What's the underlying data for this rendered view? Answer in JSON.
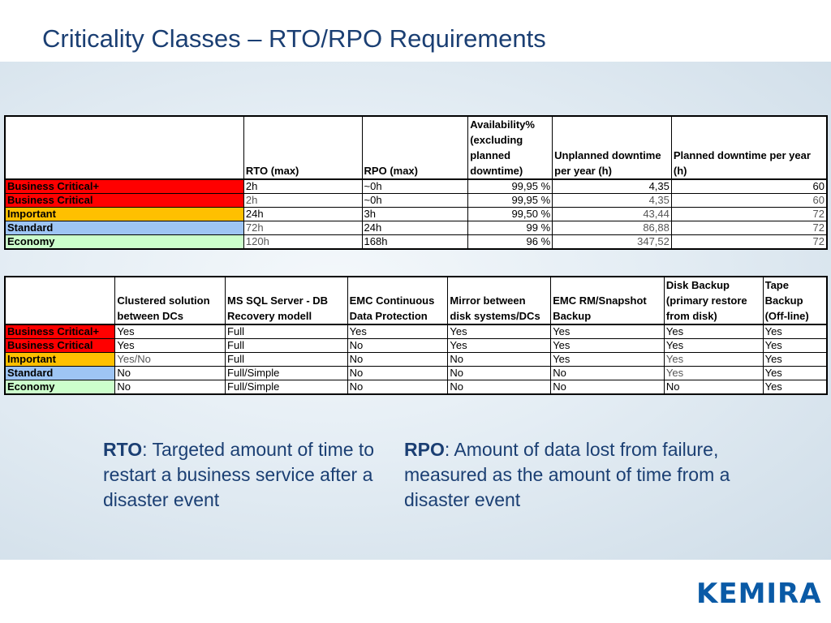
{
  "title": "Criticality Classes – RTO/RPO Requirements",
  "table1": {
    "headers": [
      "",
      "RTO (max)",
      "RPO (max)",
      "Availability% (excluding planned downtime)",
      "Unplanned downtime per year (h)",
      "Planned downtime per year (h)"
    ],
    "rows": [
      {
        "class": "Business Critical+",
        "rto": "2h",
        "rpo": "~0h",
        "availability": "99,95 %",
        "unplanned": "4,35",
        "planned": "60"
      },
      {
        "class": "Business Critical",
        "rto": "2h",
        "rpo": "~0h",
        "availability": "99,95 %",
        "unplanned": "4,35",
        "planned": "60"
      },
      {
        "class": "Important",
        "rto": "24h",
        "rpo": "3h",
        "availability": "99,50 %",
        "unplanned": "43,44",
        "planned": "72"
      },
      {
        "class": "Standard",
        "rto": "72h",
        "rpo": "24h",
        "availability": "99 %",
        "unplanned": "86,88",
        "planned": "72"
      },
      {
        "class": "Economy",
        "rto": "120h",
        "rpo": "168h",
        "availability": "96 %",
        "unplanned": "347,52",
        "planned": "72"
      }
    ]
  },
  "table2": {
    "headers": [
      "",
      "Clustered solution between DCs",
      "MS SQL Server - DB Recovery modell",
      "EMC Continuous Data Protection",
      "Mirror between disk systems/DCs",
      "EMC RM/Snapshot Backup",
      "Disk Backup (primary restore from disk)",
      "Tape Backup (Off-line)"
    ],
    "rows": [
      {
        "class": "Business Critical+",
        "cells": [
          "Yes",
          "Full",
          "Yes",
          "Yes",
          "Yes",
          "Yes",
          "Yes"
        ]
      },
      {
        "class": "Business Critical",
        "cells": [
          "Yes",
          "Full",
          "No",
          "Yes",
          "Yes",
          "Yes",
          "Yes"
        ]
      },
      {
        "class": "Important",
        "cells": [
          "Yes/No",
          "Full",
          "No",
          "No",
          "Yes",
          "Yes",
          "Yes"
        ]
      },
      {
        "class": "Standard",
        "cells": [
          "No",
          "Full/Simple",
          "No",
          "No",
          "No",
          "Yes",
          "Yes"
        ]
      },
      {
        "class": "Economy",
        "cells": [
          "No",
          "Full/Simple",
          "No",
          "No",
          "No",
          "No",
          "Yes"
        ]
      }
    ]
  },
  "definitions": {
    "rto_term": "RTO",
    "rto_text": ": Targeted amount of time to restart a business service after a disaster event",
    "rpo_term": "RPO",
    "rpo_text": ": Amount of data lost from failure, measured as the amount of time from a disaster event"
  },
  "logo": "KEMIRA",
  "colors": {
    "title": "#1b3f73",
    "business_critical": "#ff0000",
    "important": "#ffc000",
    "standard": "#9ec5f4",
    "economy": "#ccffcc"
  }
}
